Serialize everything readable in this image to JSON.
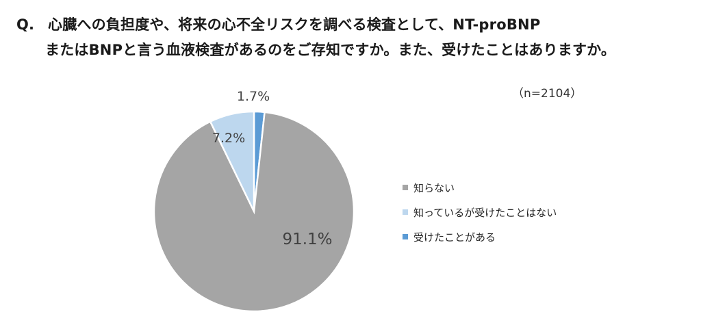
{
  "question": {
    "prefix": "Q.",
    "line1": "心臓への負担度や、将来の心不全リスクを調べる検査として、NT-proBNP",
    "line2": "またはBNPと言う血液検査があるのをご存知ですか。また、受けたことはありますか。"
  },
  "sample_size": "（n=2104）",
  "chart_data": {
    "type": "pie",
    "title": "",
    "start_angle_deg": 0,
    "direction": "clockwise",
    "slices": [
      {
        "label": "受けたことがある",
        "value": 1.7,
        "display": "1.7%",
        "color": "#5b9bd5"
      },
      {
        "label": "知らない",
        "value": 91.1,
        "display": "91.1%",
        "color": "#a5a5a5"
      },
      {
        "label": "知っているが受けたことはない",
        "value": 7.2,
        "display": "7.2%",
        "color": "#bdd7ee"
      }
    ],
    "legend": {
      "placement": "right",
      "items": [
        {
          "label": "知らない",
          "color": "#a5a5a5"
        },
        {
          "label": "知っているが受けたことはない",
          "color": "#bdd7ee"
        },
        {
          "label": "受けたことがある",
          "color": "#5b9bd5"
        }
      ]
    }
  }
}
